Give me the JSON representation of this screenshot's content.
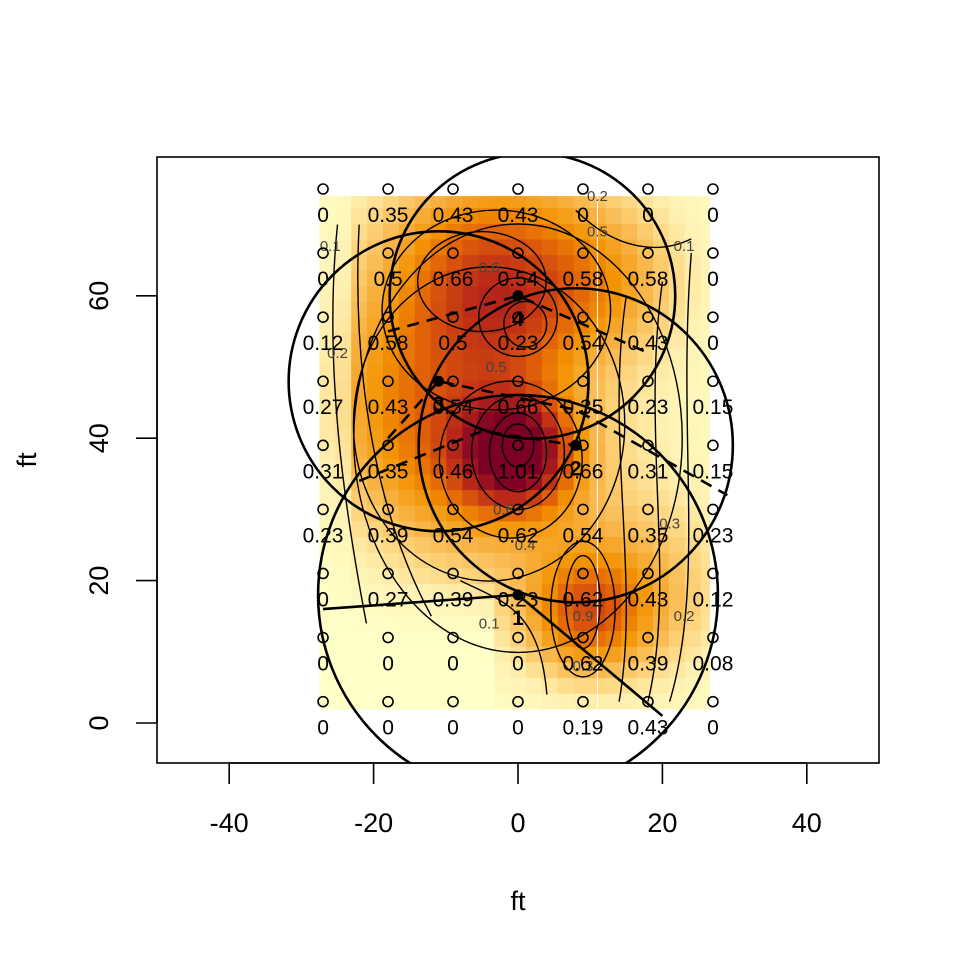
{
  "chart_data": {
    "type": "heatmap",
    "title": "",
    "xlabel": "ft",
    "ylabel": "ft",
    "xlim": [
      -50,
      50
    ],
    "ylim": [
      -6,
      79
    ],
    "x_ticks": [
      "-40",
      "-20",
      "0",
      "20",
      "40"
    ],
    "y_ticks": [
      "0",
      "20",
      "40",
      "60"
    ],
    "grid": false,
    "legend": "none",
    "colors": {
      "palette_low": "#FFFFC8",
      "palette_mid": "#F39200",
      "palette_high": "#7D0025",
      "axis": "#000000",
      "contour": "#000000",
      "contour_label": "#444444"
    },
    "heat_extent": {
      "x": [
        -27.5,
        26.5
      ],
      "y": [
        2,
        74
      ]
    },
    "peak": {
      "x": 0,
      "y": 38,
      "value": 1.01
    },
    "grid_values": {
      "x": [
        -27,
        -18,
        -9,
        0,
        9,
        18,
        27
      ],
      "y": [
        75,
        66,
        57,
        48,
        39,
        30,
        21,
        12,
        3
      ],
      "labels": [
        [
          "0",
          "0.35",
          "0.43",
          "0.43",
          "0",
          "0",
          "0"
        ],
        [
          "0",
          "0.5",
          "0.66",
          "0.54",
          "0.58",
          "0.58",
          "0"
        ],
        [
          "0.12",
          "0.58",
          "0.5",
          "0.23",
          "0.54",
          "0.43",
          "0"
        ],
        [
          "0.27",
          "0.43",
          "0.54",
          "0.66",
          "0.35",
          "0.23",
          "0.15"
        ],
        [
          "0.31",
          "0.35",
          "0.46",
          "1.01",
          "0.66",
          "0.31",
          "0.15"
        ],
        [
          "0.23",
          "0.39",
          "0.54",
          "0.62",
          "0.54",
          "0.35",
          "0.23"
        ],
        [
          "0",
          "0.27",
          "0.39",
          "0.23",
          "0.62",
          "0.43",
          "0.12"
        ],
        [
          "0",
          "0",
          "0",
          "0",
          "0.62",
          "0.39",
          "0.08"
        ],
        [
          "0",
          "0",
          "0",
          "0",
          "0.19",
          "0.43",
          "0"
        ]
      ]
    },
    "sources": [
      {
        "label": "1",
        "x": 0,
        "y": 18
      },
      {
        "label": "2",
        "x": 8,
        "y": 39
      },
      {
        "label": "3",
        "x": -11,
        "y": 48
      },
      {
        "label": "4",
        "x": 0,
        "y": 60
      }
    ],
    "contour_labels": [
      "0.1",
      "0.2",
      "0.3",
      "0.4",
      "0.5",
      "0.6",
      "0.7",
      "0.8",
      "0.9"
    ]
  }
}
